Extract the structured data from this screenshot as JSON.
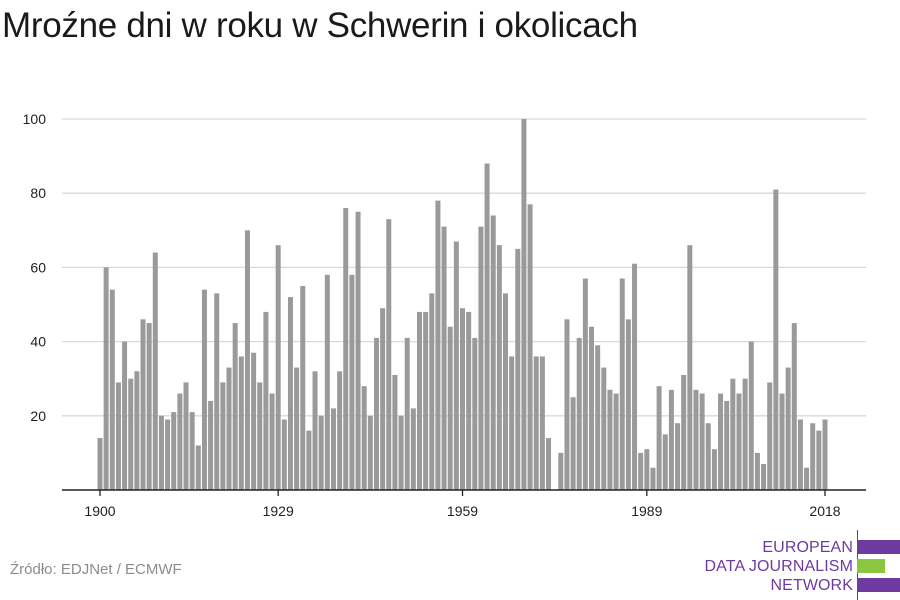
{
  "title": "Mroźne dni w roku w Schwerin i okolicach",
  "source": "Źródło: EDJNet / ECMWF",
  "logo": {
    "lines": [
      "EUROPEAN",
      "DATA JOURNALISM",
      "NETWORK"
    ],
    "colors": {
      "purple": "#6f3aa0",
      "green": "#8cc63f"
    }
  },
  "colors": {
    "bar": "#9a9a9a",
    "grid": "#d9d9d9",
    "axis": "#222222"
  },
  "chart_data": {
    "type": "bar",
    "title": "Mroźne dni w roku w Schwerin i okolicach",
    "xlabel": "",
    "ylabel": "",
    "ylim": [
      0,
      100
    ],
    "yticks": [
      20,
      40,
      60,
      80,
      100
    ],
    "xticks": [
      1900,
      1929,
      1959,
      1989,
      2018
    ],
    "grid": true,
    "x": [
      1900,
      1901,
      1902,
      1903,
      1904,
      1905,
      1906,
      1907,
      1908,
      1909,
      1910,
      1911,
      1912,
      1913,
      1914,
      1915,
      1916,
      1917,
      1918,
      1919,
      1920,
      1921,
      1922,
      1923,
      1924,
      1925,
      1926,
      1927,
      1928,
      1929,
      1930,
      1931,
      1932,
      1933,
      1934,
      1935,
      1936,
      1937,
      1938,
      1939,
      1940,
      1941,
      1942,
      1943,
      1944,
      1945,
      1946,
      1947,
      1948,
      1949,
      1950,
      1951,
      1952,
      1953,
      1954,
      1955,
      1956,
      1957,
      1958,
      1959,
      1960,
      1961,
      1962,
      1963,
      1964,
      1965,
      1966,
      1967,
      1968,
      1969,
      1970,
      1971,
      1972,
      1973,
      1974,
      1975,
      1976,
      1977,
      1978,
      1979,
      1980,
      1981,
      1982,
      1983,
      1984,
      1985,
      1986,
      1987,
      1988,
      1989,
      1990,
      1991,
      1992,
      1993,
      1994,
      1995,
      1996,
      1997,
      1998,
      1999,
      2000,
      2001,
      2002,
      2003,
      2004,
      2005,
      2006,
      2007,
      2008,
      2009,
      2010,
      2011,
      2012,
      2013,
      2014,
      2015,
      2016,
      2017,
      2018
    ],
    "values": [
      14,
      60,
      54,
      29,
      40,
      30,
      32,
      46,
      45,
      64,
      20,
      19,
      21,
      26,
      29,
      21,
      12,
      54,
      24,
      53,
      29,
      33,
      45,
      36,
      70,
      37,
      29,
      48,
      26,
      66,
      19,
      52,
      33,
      55,
      16,
      32,
      20,
      58,
      22,
      32,
      76,
      58,
      75,
      28,
      20,
      41,
      49,
      73,
      31,
      20,
      41,
      22,
      48,
      48,
      53,
      78,
      71,
      44,
      67,
      49,
      48,
      41,
      71,
      88,
      74,
      66,
      53,
      36,
      65,
      100,
      77,
      36,
      36,
      14,
      0,
      10,
      46,
      25,
      41,
      57,
      44,
      39,
      33,
      27,
      26,
      57,
      46,
      61,
      10,
      11,
      6,
      28,
      15,
      27,
      18,
      31,
      66,
      27,
      26,
      18,
      11,
      26,
      24,
      30,
      26,
      30,
      40,
      10,
      7,
      29,
      81,
      26,
      33,
      45,
      19,
      6,
      18,
      16,
      19
    ]
  }
}
